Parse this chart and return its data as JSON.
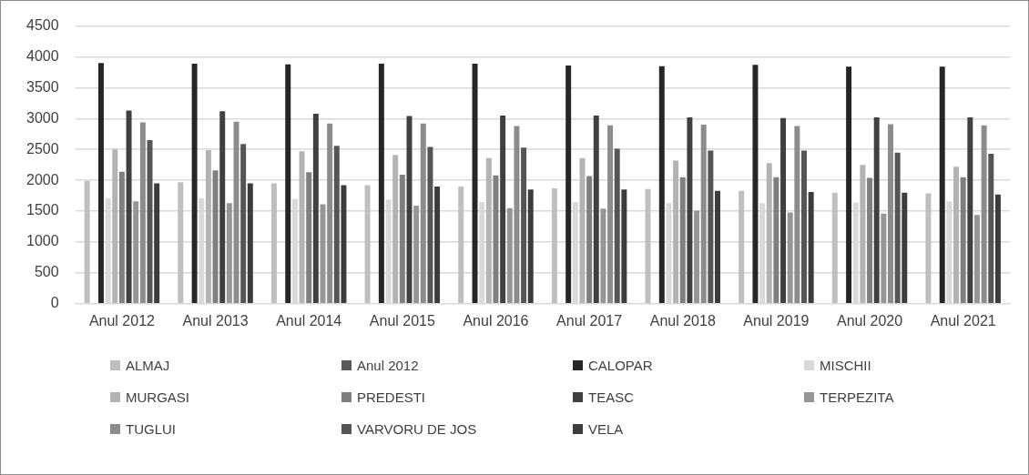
{
  "chart_data": {
    "type": "bar",
    "categories": [
      "Anul 2012",
      "Anul 2013",
      "Anul 2014",
      "Anul 2015",
      "Anul 2016",
      "Anul 2017",
      "Anul 2018",
      "Anul 2019",
      "Anul 2020",
      "Anul 2021"
    ],
    "ylim": [
      0,
      4500
    ],
    "yticks": [
      0,
      500,
      1000,
      1500,
      2000,
      2500,
      3000,
      3500,
      4000,
      4500
    ],
    "grid": "y",
    "legend": "bottom",
    "series": [
      {
        "name": "ALMAJ",
        "color": "#bfbfbf",
        "values": [
          1990,
          1970,
          1950,
          1920,
          1900,
          1870,
          1860,
          1830,
          1800,
          1790
        ]
      },
      {
        "name": "Anul 2012",
        "color": "#595959",
        "values": [
          null,
          null,
          null,
          null,
          null,
          null,
          null,
          null,
          null,
          null
        ]
      },
      {
        "name": "CALOPAR",
        "color": "#262626",
        "values": [
          3900,
          3890,
          3880,
          3890,
          3890,
          3860,
          3850,
          3870,
          3840,
          3840
        ]
      },
      {
        "name": "MISCHII",
        "color": "#d9d9d9",
        "values": [
          1710,
          1710,
          1700,
          1690,
          1650,
          1650,
          1630,
          1630,
          1640,
          1660
        ]
      },
      {
        "name": "MURGASI",
        "color": "#b3b3b3",
        "values": [
          2500,
          2490,
          2470,
          2410,
          2360,
          2360,
          2320,
          2280,
          2250,
          2220
        ]
      },
      {
        "name": "PREDESTI",
        "color": "#7f7f7f",
        "values": [
          2140,
          2160,
          2130,
          2090,
          2080,
          2070,
          2050,
          2050,
          2040,
          2050
        ]
      },
      {
        "name": "TEASC",
        "color": "#404040",
        "values": [
          3130,
          3120,
          3080,
          3040,
          3050,
          3050,
          3020,
          3010,
          3020,
          3020
        ]
      },
      {
        "name": "TERPEZITA",
        "color": "#969696",
        "values": [
          1660,
          1630,
          1610,
          1590,
          1550,
          1540,
          1510,
          1480,
          1460,
          1440
        ]
      },
      {
        "name": "TUGLUI",
        "color": "#8c8c8c",
        "values": [
          2940,
          2950,
          2920,
          2920,
          2880,
          2890,
          2900,
          2880,
          2910,
          2890
        ]
      },
      {
        "name": "VARVORU DE JOS",
        "color": "#555555",
        "values": [
          2650,
          2590,
          2560,
          2540,
          2530,
          2510,
          2480,
          2480,
          2450,
          2430
        ]
      },
      {
        "name": "VELA",
        "color": "#3c3c3c",
        "values": [
          1950,
          1950,
          1920,
          1900,
          1850,
          1850,
          1830,
          1810,
          1800,
          1770
        ]
      }
    ]
  }
}
